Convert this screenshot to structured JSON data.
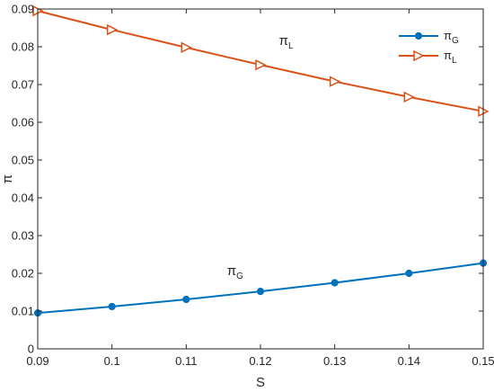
{
  "chart_data": {
    "type": "line",
    "xlabel": "S",
    "ylabel": "π",
    "xlim": [
      0.09,
      0.15
    ],
    "ylim": [
      0,
      0.09
    ],
    "x": [
      0.09,
      0.1,
      0.11,
      0.12,
      0.13,
      0.14,
      0.15
    ],
    "x_tick_labels": [
      "0.09",
      "0.1",
      "0.11",
      "0.12",
      "0.13",
      "0.14",
      "0.15"
    ],
    "y_ticks": [
      0,
      0.01,
      0.02,
      0.03,
      0.04,
      0.05,
      0.06,
      0.07,
      0.08,
      0.09
    ],
    "y_tick_labels": [
      "0",
      "0.01",
      "0.02",
      "0.03",
      "0.04",
      "0.05",
      "0.06",
      "0.07",
      "0.08",
      "0.09"
    ],
    "grid": false,
    "legend_position": "top-right",
    "series": [
      {
        "name": "π",
        "name_sub": "G",
        "color": "#0072BD",
        "marker": "dot",
        "values": [
          0.0095,
          0.0112,
          0.0131,
          0.0152,
          0.0175,
          0.02,
          0.0227
        ]
      },
      {
        "name": "π",
        "name_sub": "L",
        "color": "#D95319",
        "marker": "triangle-right",
        "values": [
          0.0895,
          0.0845,
          0.0798,
          0.0752,
          0.0708,
          0.0667,
          0.0629
        ]
      }
    ],
    "annotations": [
      {
        "text": "π",
        "sub": "L",
        "x": 0.1225,
        "y": 0.0805
      },
      {
        "text": "π",
        "sub": "G",
        "x": 0.1155,
        "y": 0.0195
      }
    ]
  }
}
